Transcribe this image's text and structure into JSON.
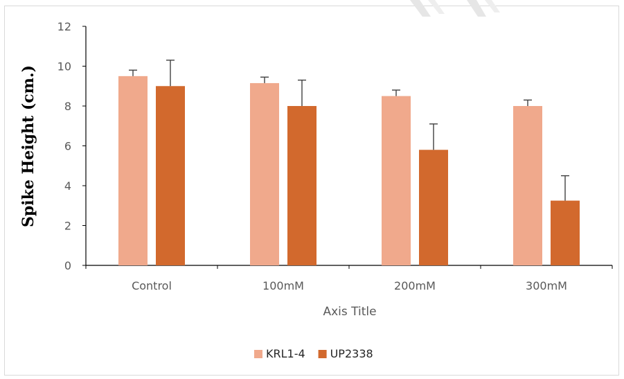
{
  "chart_data": {
    "type": "bar",
    "title": "",
    "xlabel": "Axis Title",
    "ylabel": "Spike Height (cm.)",
    "ylim": [
      0,
      12
    ],
    "yticks": [
      0,
      2,
      4,
      6,
      8,
      10,
      12
    ],
    "categories": [
      "Control",
      "100mM",
      "200mM",
      "300mM"
    ],
    "series": [
      {
        "name": "KRL1-4",
        "color": "#f0a98c",
        "values": [
          9.5,
          9.15,
          8.5,
          8.0
        ],
        "errors": [
          0.3,
          0.3,
          0.3,
          0.3
        ]
      },
      {
        "name": "UP2338",
        "color": "#d2692d",
        "values": [
          9.0,
          8.0,
          5.8,
          3.25
        ],
        "errors": [
          1.3,
          1.3,
          1.3,
          1.25
        ]
      }
    ],
    "grid": false,
    "legend_position": "bottom"
  }
}
